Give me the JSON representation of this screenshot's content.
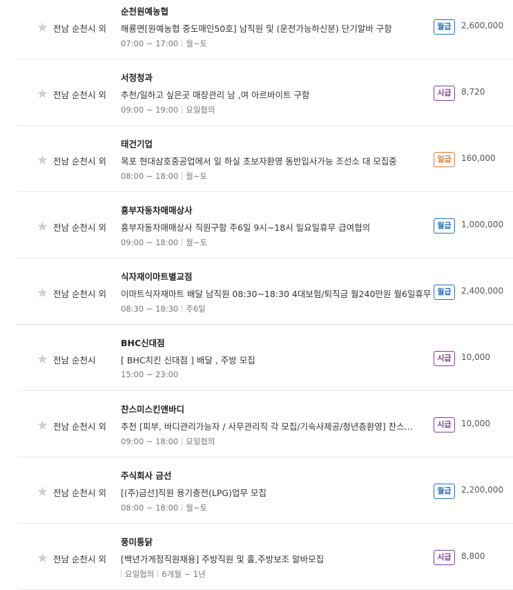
{
  "colors": {
    "monthly": "#1f6fbf",
    "hourly": "#7d3c98",
    "daily": "#e0782a"
  },
  "jobs": [
    {
      "location": "전남 순천시 외",
      "company": "순천원예농협",
      "description": "해룡면[원예농협 중도매인50호] 남직원 및 (운전가능하신분) 단기알바 구함",
      "hours": "07:00 ~ 17:00",
      "days": "월~토",
      "pay_type": "월급",
      "pay_kind": "monthly",
      "pay": "2,600,000"
    },
    {
      "location": "전남 순천시 외",
      "company": "서정청과",
      "description": "추천/일하고 싶은곳 매장관리 남 ,여 아르바이트 구함",
      "hours": "09:00 ~ 19:00",
      "days": "요일협의",
      "pay_type": "시급",
      "pay_kind": "hourly",
      "pay": "8,720"
    },
    {
      "location": "전남 순천시 외",
      "company": "태건기업",
      "description": "목포 현대삼호중공업에서 일 하실 초보자환영 동반입사가능 조선소 대 모집중",
      "hours": "08:00 ~ 18:00",
      "days": "월~토",
      "pay_type": "일급",
      "pay_kind": "daily",
      "pay": "160,000"
    },
    {
      "location": "전남 순천시 외",
      "company": "흥부자동차매매상사",
      "description": "흥부자동차매매상사 직원구함 주6일 9시~18시 일요일휴무 급여협의",
      "hours": "09:00 ~ 18:00",
      "days": "월~토",
      "pay_type": "월급",
      "pay_kind": "monthly",
      "pay": "1,000,000"
    },
    {
      "location": "전남 순천시 외",
      "company": "식자재이마트별교점",
      "description": "이마트식자재마트 배달 남직원 08:30~18:30 4대보험/퇴직금 월240만원 월6일휴무",
      "hours": "08:30 ~ 18:30",
      "days": "주6일",
      "pay_type": "월급",
      "pay_kind": "monthly",
      "pay": "2,400,000"
    },
    {
      "location": "전남 순천시",
      "company": "BHC신대점",
      "description": "[ BHC치킨 신대점 ] 배달 , 주방 모집",
      "hours": "15:00 ~ 23:00",
      "days": "",
      "pay_type": "시급",
      "pay_kind": "hourly",
      "pay": "10,000"
    },
    {
      "location": "전남 순천시 외",
      "company": "찬스미스킨앤바디",
      "description": "추천 [피부, 바디관리가능자 / 사무관리직 각 모집/기숙사제공/청년층환영] 찬스...",
      "hours": "09:00 ~ 18:00",
      "days": "요일협의",
      "pay_type": "시급",
      "pay_kind": "hourly",
      "pay": "10,000"
    },
    {
      "location": "전남 순천시 외",
      "company": "주식회사 금선",
      "description": "[(주)금선]직원 용기충전(LPG)업무 모집",
      "hours": "08:00 ~ 18:00",
      "days": "월~토",
      "pay_type": "월급",
      "pay_kind": "monthly",
      "pay": "2,200,000"
    },
    {
      "location": "전남 순천시 외",
      "company": "풍미통닭",
      "description": "[백년가게정직원채용] 주방직원 및 홀,주방보조 알바모집",
      "hours": "",
      "days": "요일협의",
      "period": "6개월 ~ 1년",
      "pay_type": "시급",
      "pay_kind": "hourly",
      "pay": "8,800"
    }
  ]
}
